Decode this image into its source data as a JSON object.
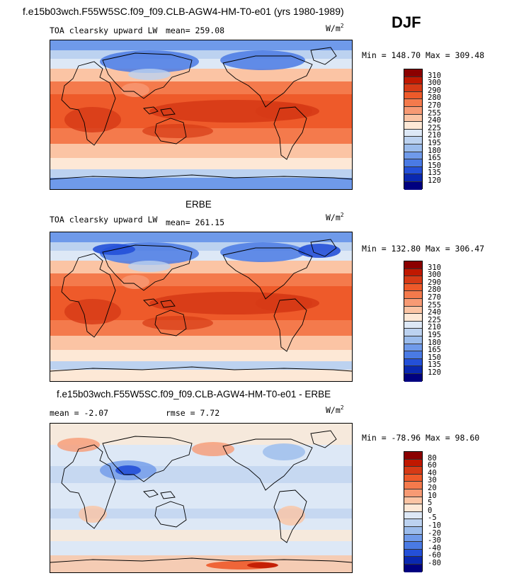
{
  "header": {
    "title": "f.e15b03wch.F55W5SC.f09_f09.CLB-AGW4-HM-T0-e01 (yrs 1980-1989)",
    "season": "DJF"
  },
  "panels": [
    {
      "id": "model",
      "variable": "TOA clearsky upward LW",
      "mean_label": "mean= 259.08",
      "units": "W/m",
      "units_exp": "2",
      "minmax": "Min = 148.70 Max = 309.48",
      "levels": [
        "310",
        "300",
        "290",
        "280",
        "270",
        "255",
        "240",
        "225",
        "210",
        "195",
        "180",
        "165",
        "150",
        "135",
        "120"
      ],
      "colors": [
        "#8b0000",
        "#c01800",
        "#d63a16",
        "#ee5a2a",
        "#f47a4c",
        "#f79a74",
        "#fbc4a4",
        "#fde8d6",
        "#dde8f6",
        "#bcd2f0",
        "#9bbcec",
        "#6f9aea",
        "#4a7ae4",
        "#2450d8",
        "#0a28b0",
        "#000080"
      ]
    },
    {
      "id": "obs",
      "heading": "ERBE",
      "variable": "TOA clearsky upward LW",
      "mean_label": "mean= 261.15",
      "units": "W/m",
      "units_exp": "2",
      "minmax": "Min = 132.80 Max = 306.47",
      "levels": [
        "310",
        "300",
        "290",
        "280",
        "270",
        "255",
        "240",
        "225",
        "210",
        "195",
        "180",
        "165",
        "150",
        "135",
        "120"
      ],
      "colors": [
        "#8b0000",
        "#c01800",
        "#d63a16",
        "#ee5a2a",
        "#f47a4c",
        "#f79a74",
        "#fbc4a4",
        "#fde8d6",
        "#dde8f6",
        "#bcd2f0",
        "#9bbcec",
        "#6f9aea",
        "#4a7ae4",
        "#2450d8",
        "#0a28b0",
        "#000080"
      ]
    },
    {
      "id": "diff",
      "heading": "f.e15b03wch.F55W5SC.f09_f09.CLB-AGW4-HM-T0-e01 - ERBE",
      "mean_label": "mean =  -2.07",
      "rmse_label": "rmse =   7.72",
      "units": "W/m",
      "units_exp": "2",
      "minmax": "Min = -78.96 Max =  98.60",
      "levels": [
        "80",
        "60",
        "40",
        "30",
        "20",
        "10",
        "5",
        "0",
        "-5",
        "-10",
        "-20",
        "-30",
        "-40",
        "-60",
        "-80"
      ],
      "colors": [
        "#8b0000",
        "#c01800",
        "#d63a16",
        "#ee5a2a",
        "#f47a4c",
        "#f79a74",
        "#fbc4a4",
        "#fde8d6",
        "#dde8f6",
        "#bcd2f0",
        "#9bbcec",
        "#6f9aea",
        "#4a7ae4",
        "#2450d8",
        "#0a28b0",
        "#000080"
      ]
    }
  ]
}
